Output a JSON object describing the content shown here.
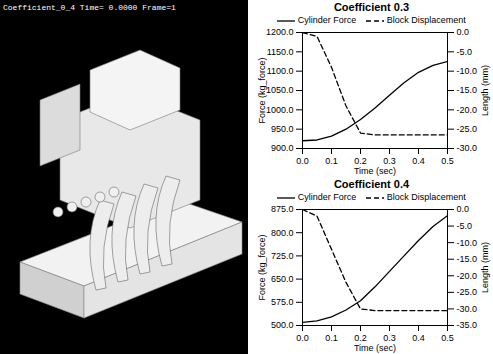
{
  "render": {
    "caption": "Coefficient_0_4  Time= 0.0000 Frame=1"
  },
  "chart_data": [
    {
      "type": "line",
      "title": "Coefficient 0.3",
      "xlabel": "Time (sec)",
      "ylabel": "Force (kg_force)",
      "y2label": "Length (mm)",
      "x": [
        0,
        0.05,
        0.1,
        0.15,
        0.2,
        0.25,
        0.3,
        0.35,
        0.4,
        0.45,
        0.5
      ],
      "xlim": [
        0,
        0.5
      ],
      "xticks": [
        {
          "value": 0,
          "label": "0.0"
        },
        0.1,
        0.2,
        0.3,
        0.4,
        0.5
      ],
      "ylim": [
        900,
        1200
      ],
      "yticks": [
        {
          "value": 900,
          "label": "900.0"
        },
        {
          "value": 950,
          "label": "950.0"
        },
        {
          "value": 1000,
          "label": "1000.0"
        },
        {
          "value": 1050,
          "label": "1050.0"
        },
        {
          "value": 1100,
          "label": "1100.0"
        },
        {
          "value": 1150,
          "label": "1150.0"
        },
        {
          "value": 1200,
          "label": "1200.0"
        }
      ],
      "y2lim": [
        -30,
        0
      ],
      "y2ticks": [
        {
          "value": 0,
          "label": "0.0"
        },
        {
          "value": -5,
          "label": "-5.0"
        },
        {
          "value": -10,
          "label": "-10.0"
        },
        {
          "value": -15,
          "label": "-15.0"
        },
        {
          "value": -20,
          "label": "-20.0"
        },
        {
          "value": -25,
          "label": "-25.0"
        },
        {
          "value": -30,
          "label": "-30.0"
        }
      ],
      "legend": "top",
      "series": [
        {
          "name": "Cylinder Force",
          "color": "#000000",
          "line_style": "solid",
          "values": [
            920,
            922,
            932,
            950,
            975,
            1005,
            1038,
            1070,
            1097,
            1115,
            1125
          ]
        },
        {
          "name": "Block Displacement",
          "color": "#000000",
          "line_style": "dashed",
          "axis": "y2",
          "values": [
            0,
            -1,
            -9,
            -19,
            -26,
            -26.5,
            -26.5,
            -26.5,
            -26.5,
            -26.5,
            -26.5
          ]
        }
      ]
    },
    {
      "type": "line",
      "title": "Coefficient 0.4",
      "xlabel": "Time (sec)",
      "ylabel": "Force (kg_force)",
      "y2label": "Length (mm)",
      "x": [
        0,
        0.05,
        0.1,
        0.15,
        0.2,
        0.25,
        0.3,
        0.35,
        0.4,
        0.45,
        0.5
      ],
      "xlim": [
        0,
        0.5
      ],
      "xticks": [
        {
          "value": 0,
          "label": "0.0"
        },
        0.1,
        0.2,
        0.3,
        0.4,
        0.5
      ],
      "ylim": [
        500,
        875
      ],
      "yticks": [
        {
          "value": 500,
          "label": "500.0"
        },
        {
          "value": 575,
          "label": "575.0"
        },
        {
          "value": 650,
          "label": "650.0"
        },
        {
          "value": 725,
          "label": "725.0"
        },
        {
          "value": 800,
          "label": "800.0"
        },
        {
          "value": 875,
          "label": "875.0"
        }
      ],
      "y2lim": [
        -35,
        0
      ],
      "y2ticks": [
        {
          "value": 0,
          "label": "0.0"
        },
        {
          "value": -5,
          "label": "-5.0"
        },
        {
          "value": -10,
          "label": "-10.0"
        },
        {
          "value": -15,
          "label": "-15.0"
        },
        {
          "value": -20,
          "label": "-20.0"
        },
        {
          "value": -25,
          "label": "-25.0"
        },
        {
          "value": -30,
          "label": "-30.0"
        },
        {
          "value": -35,
          "label": "-35.0"
        }
      ],
      "legend": "top",
      "series": [
        {
          "name": "Cylinder Force",
          "color": "#000000",
          "line_style": "solid",
          "values": [
            510,
            515,
            528,
            550,
            580,
            625,
            675,
            725,
            775,
            820,
            855
          ]
        },
        {
          "name": "Block Displacement",
          "color": "#000000",
          "line_style": "dashed",
          "axis": "y2",
          "values": [
            0,
            -2,
            -12,
            -22,
            -30,
            -30.5,
            -30.5,
            -30.5,
            -30.5,
            -30.5,
            -30.5
          ]
        }
      ]
    }
  ]
}
